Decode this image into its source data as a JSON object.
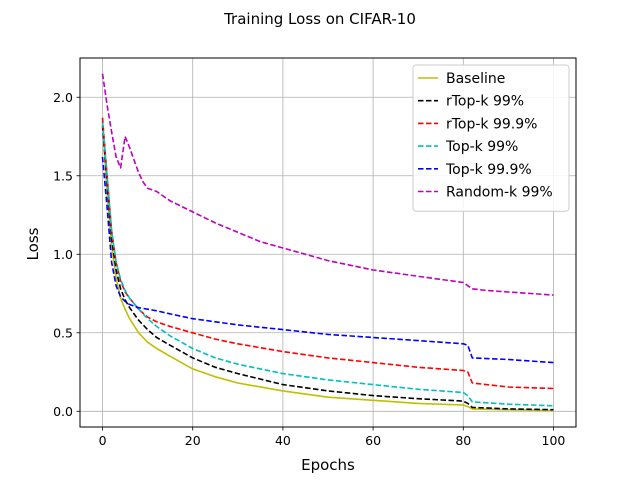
{
  "chart_data": {
    "type": "line",
    "title": "Training Loss on CIFAR-10",
    "xlabel": "Epochs",
    "ylabel": "Loss",
    "xlim": [
      -5,
      105
    ],
    "ylim": [
      -0.1,
      2.25
    ],
    "xticks": [
      0,
      20,
      40,
      60,
      80,
      100
    ],
    "yticks": [
      0.0,
      0.5,
      1.0,
      1.5,
      2.0
    ],
    "xtick_labels": [
      "0",
      "20",
      "40",
      "60",
      "80",
      "100"
    ],
    "ytick_labels": [
      "0.0",
      "0.5",
      "1.0",
      "1.5",
      "2.0"
    ],
    "grid": true,
    "legend_position": "top-right",
    "series": [
      {
        "name": "Baseline",
        "color": "#bfbf00",
        "dash": "solid",
        "x": [
          0,
          1,
          2,
          3,
          4,
          5,
          6,
          8,
          10,
          12,
          15,
          20,
          25,
          30,
          40,
          50,
          60,
          70,
          80,
          81,
          82,
          90,
          100
        ],
        "y": [
          1.85,
          1.4,
          1.05,
          0.85,
          0.72,
          0.65,
          0.59,
          0.5,
          0.44,
          0.4,
          0.35,
          0.27,
          0.22,
          0.18,
          0.13,
          0.09,
          0.07,
          0.05,
          0.04,
          0.03,
          0.015,
          0.01,
          0.005
        ]
      },
      {
        "name": "rTop-k 99%",
        "color": "#000000",
        "dash": "dashed",
        "x": [
          0,
          1,
          2,
          3,
          4,
          5,
          6,
          8,
          10,
          12,
          15,
          20,
          25,
          30,
          40,
          50,
          60,
          70,
          80,
          81,
          82,
          90,
          100
        ],
        "y": [
          1.82,
          1.45,
          1.1,
          0.9,
          0.78,
          0.71,
          0.66,
          0.58,
          0.52,
          0.47,
          0.42,
          0.34,
          0.28,
          0.24,
          0.17,
          0.13,
          0.1,
          0.08,
          0.065,
          0.05,
          0.025,
          0.015,
          0.01
        ]
      },
      {
        "name": "rTop-k 99.9%",
        "color": "#ff0000",
        "dash": "dashed",
        "x": [
          0,
          1,
          2,
          3,
          4,
          5,
          6,
          8,
          10,
          12,
          15,
          20,
          25,
          30,
          40,
          50,
          60,
          70,
          80,
          81,
          82,
          90,
          100
        ],
        "y": [
          1.87,
          1.5,
          1.15,
          0.95,
          0.83,
          0.76,
          0.72,
          0.65,
          0.6,
          0.57,
          0.54,
          0.5,
          0.46,
          0.43,
          0.38,
          0.34,
          0.31,
          0.28,
          0.26,
          0.25,
          0.18,
          0.155,
          0.145
        ]
      },
      {
        "name": "Top-k 99%",
        "color": "#00bfbf",
        "dash": "dashed",
        "x": [
          0,
          1,
          2,
          3,
          4,
          5,
          6,
          8,
          10,
          12,
          15,
          20,
          25,
          30,
          40,
          50,
          60,
          70,
          80,
          81,
          82,
          90,
          100
        ],
        "y": [
          1.84,
          1.5,
          1.15,
          0.95,
          0.84,
          0.77,
          0.72,
          0.65,
          0.59,
          0.54,
          0.48,
          0.4,
          0.34,
          0.3,
          0.24,
          0.2,
          0.17,
          0.14,
          0.12,
          0.1,
          0.06,
          0.045,
          0.035
        ]
      },
      {
        "name": "Top-k 99.9%",
        "color": "#0000ff",
        "dash": "dashed",
        "x": [
          0,
          1,
          2,
          3,
          4,
          5,
          6,
          8,
          10,
          12,
          15,
          20,
          25,
          30,
          40,
          50,
          60,
          70,
          80,
          81,
          82,
          90,
          100
        ],
        "y": [
          1.62,
          1.3,
          0.95,
          0.8,
          0.73,
          0.7,
          0.68,
          0.66,
          0.65,
          0.64,
          0.62,
          0.59,
          0.57,
          0.55,
          0.52,
          0.49,
          0.47,
          0.45,
          0.43,
          0.42,
          0.34,
          0.33,
          0.31
        ]
      },
      {
        "name": "Random-k 99%",
        "color": "#bf00bf",
        "dash": "dashed",
        "x": [
          0,
          1,
          2,
          3,
          4,
          5,
          6,
          7,
          8,
          9,
          10,
          12,
          15,
          20,
          25,
          30,
          35,
          40,
          45,
          50,
          55,
          60,
          65,
          70,
          75,
          80,
          81,
          82,
          85,
          90,
          95,
          100
        ],
        "y": [
          2.15,
          1.95,
          1.78,
          1.62,
          1.55,
          1.75,
          1.68,
          1.6,
          1.52,
          1.46,
          1.42,
          1.4,
          1.34,
          1.27,
          1.2,
          1.14,
          1.08,
          1.04,
          1.0,
          0.96,
          0.93,
          0.9,
          0.88,
          0.86,
          0.84,
          0.82,
          0.8,
          0.78,
          0.77,
          0.76,
          0.75,
          0.74
        ]
      }
    ]
  }
}
